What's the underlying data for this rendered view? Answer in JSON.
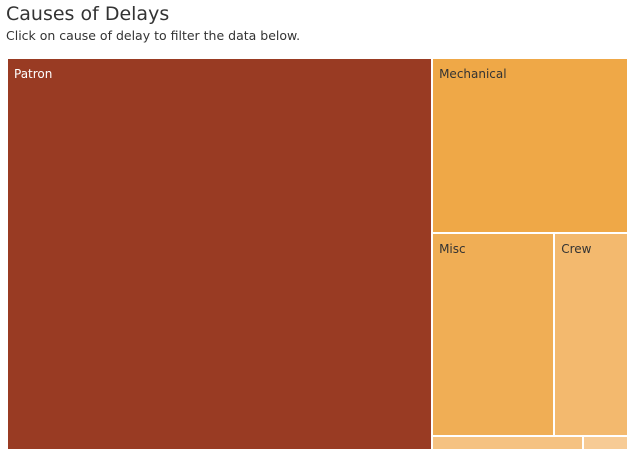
{
  "header": {
    "title": "Causes of Delays",
    "subtitle": "Click on cause of delay to filter the data below."
  },
  "chart_data": {
    "type": "treemap",
    "title": "Causes of Delays",
    "subtitle": "Click on cause of delay to filter the data below.",
    "series": [
      {
        "name": "Patron",
        "value": 161000,
        "color": "#993B23",
        "label_color": "#ffffff"
      },
      {
        "name": "Mechanical",
        "value": 33100,
        "color": "#EFA847",
        "label_color": "#333333"
      },
      {
        "name": "Misc",
        "value": 24000,
        "color": "#F0AE55",
        "label_color": "#333333"
      },
      {
        "name": "Crew",
        "value": 14500,
        "color": "#F3B96E",
        "label_color": "#333333"
      },
      {
        "name": "",
        "value": 2000,
        "color": "#F5C282",
        "label_color": "#333333"
      },
      {
        "name": "",
        "value": 600,
        "color": "#F7CB95",
        "label_color": "#333333"
      }
    ]
  }
}
